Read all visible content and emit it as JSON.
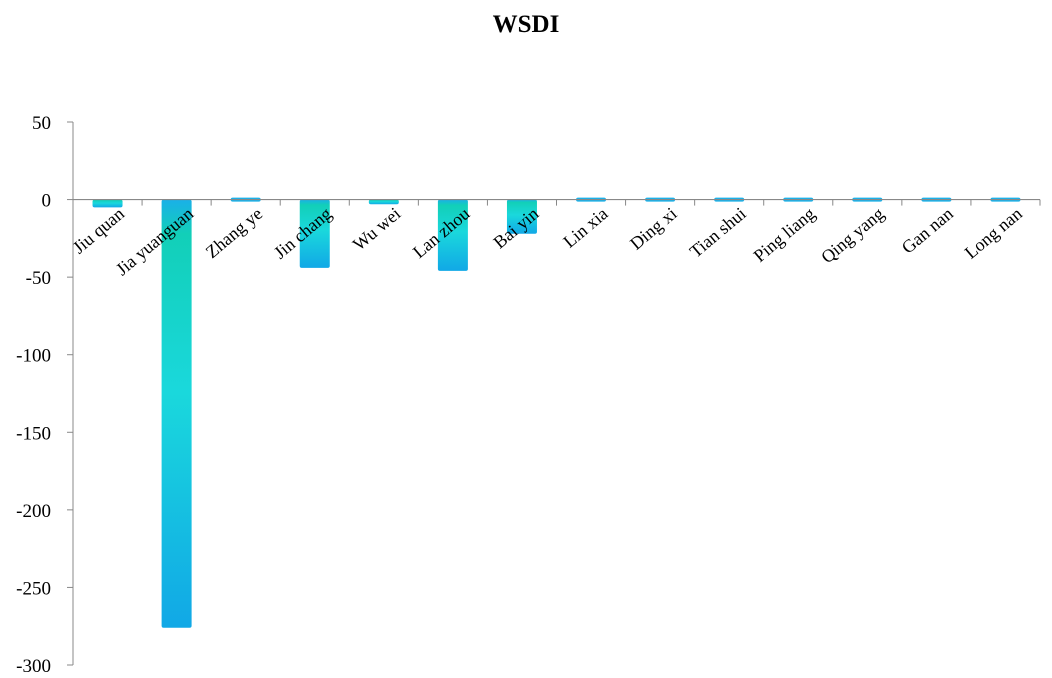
{
  "chart_data": {
    "type": "bar",
    "title": "WSDI",
    "xlabel": "",
    "ylabel": "",
    "categories": [
      "Jiu quan",
      "Jia yuanguan",
      "Zhang ye",
      "Jin chang",
      "Wu wei",
      "Lan zhou",
      "Bai yin",
      "Lin xia",
      "Ding xi",
      "Tian shui",
      "Ping liang",
      "Qing yang",
      "Gan nan",
      "Long nan"
    ],
    "values": [
      -5,
      -276,
      0,
      -44,
      -3,
      -46,
      -22,
      0,
      0,
      0,
      0,
      0,
      0,
      0
    ],
    "ylim": [
      -300,
      50
    ],
    "yticks": [
      50,
      0,
      -50,
      -100,
      -150,
      -200,
      -250,
      -300
    ],
    "ytick_labels": [
      "50",
      "0",
      "-50",
      "-100",
      "-150",
      "-200",
      "-250",
      "-300"
    ],
    "grid": false,
    "legend": "none",
    "colors": {
      "bar_top": "#1ab0e8",
      "bar_mid": "#18d6cf",
      "bar_bottom": "#11a8e6",
      "axis": "#888888",
      "text": "#000000"
    }
  }
}
